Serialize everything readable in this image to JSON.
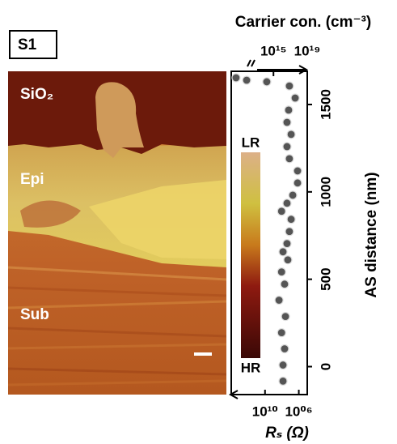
{
  "chart_data": {
    "type": "scatter",
    "panel_label": "S1",
    "region_labels": [
      "SiO₂",
      "Epi",
      "Sub"
    ],
    "colorbar_labels": {
      "top": "LR",
      "bottom": "HR"
    },
    "x2_label": "Carrier con. (cm⁻³)",
    "xlabel": "Rₛ (Ω)",
    "ylabel": "AS distance (nm)",
    "xscale": "log",
    "x2scale": "log",
    "xlim": [
      100000000000000.0,
      100000.0
    ],
    "xticks": [
      {
        "value": 10000000000.0,
        "label": "10¹⁰"
      },
      {
        "value": 1000000.0,
        "label": "10⁰⁶"
      }
    ],
    "x2lim": [
      10000000000.0,
      1e+19
    ],
    "x2ticks": [
      {
        "value": 1000000000000000.0,
        "label": "10¹⁵"
      },
      {
        "value": 1e+19,
        "label": "10¹⁹"
      }
    ],
    "ylim": [
      -160,
      1690
    ],
    "yticks": [
      0,
      500,
      1000,
      1500
    ],
    "color": "#555555",
    "x": [
      74000000.0,
      74000000.0,
      48000000.0,
      110000000.0,
      38000000.0,
      220000000.0,
      48000000.0,
      110000000.0,
      20000000.0,
      74000000.0,
      25000000.0,
      13000000.0,
      8100000.0,
      110000000.0,
      25000000.0,
      5200000.0,
      1400000.0,
      1400000.0,
      13000000.0,
      25000000.0,
      8100000.0,
      25000000.0,
      16000000.0,
      2700000.0,
      13000000.0,
      6200000000.0,
      1500000000000.0,
      27000000000000.0
    ],
    "values": [
      -83,
      9,
      102,
      194,
      287,
      380,
      472,
      542,
      611,
      657,
      704,
      773,
      843,
      889,
      935,
      981,
      1051,
      1120,
      1190,
      1259,
      1329,
      1398,
      1468,
      1537,
      1606,
      1630,
      1639,
      1653
    ]
  }
}
